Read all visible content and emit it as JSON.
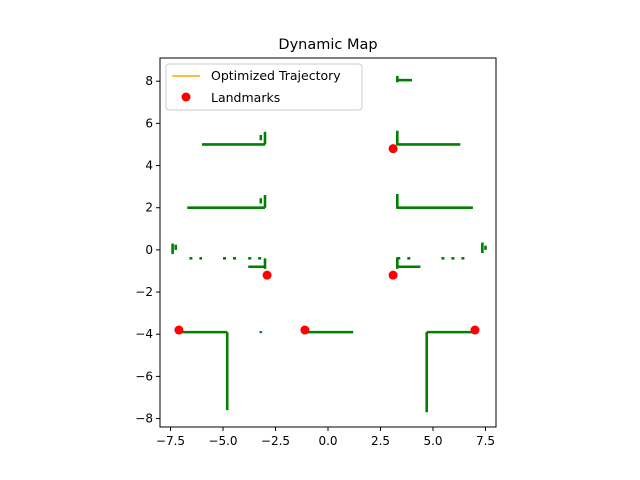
{
  "chart_data": {
    "type": "scatter",
    "title": "Dynamic Map",
    "xlabel": "",
    "ylabel": "",
    "xlim": [
      -8.0,
      8.0
    ],
    "ylim": [
      -8.4,
      9.1
    ],
    "xticks": [
      -7.5,
      -5.0,
      -2.5,
      0.0,
      2.5,
      5.0,
      7.5
    ],
    "xtick_labels": [
      "−7.5",
      "−5.0",
      "−2.5",
      "0.0",
      "2.5",
      "5.0",
      "7.5"
    ],
    "yticks": [
      -8,
      -6,
      -4,
      -2,
      0,
      2,
      4,
      6,
      8
    ],
    "ytick_labels": [
      "−8",
      "−6",
      "−4",
      "−2",
      "0",
      "2",
      "4",
      "6",
      "8"
    ],
    "grid": false,
    "legend": {
      "placement": "top-left",
      "entries": [
        {
          "label": "Optimized Trajectory",
          "marker": "line",
          "color": "#ffa500"
        },
        {
          "label": "Landmarks",
          "marker": "dot",
          "color": "#ff0000"
        }
      ]
    },
    "series": [
      {
        "name": "Landmarks",
        "kind": "points",
        "color": "#ff0000",
        "points": [
          [
            3.1,
            4.8
          ],
          [
            -2.9,
            -1.2
          ],
          [
            3.1,
            -1.2
          ],
          [
            -7.1,
            -3.8
          ],
          [
            -1.1,
            -3.8
          ],
          [
            7.0,
            -3.8
          ]
        ]
      },
      {
        "name": "",
        "kind": "scan-segments",
        "color": "#008000",
        "segments": [
          [
            [
              3.3,
              8.05
            ],
            [
              4.0,
              8.05
            ]
          ],
          [
            [
              3.3,
              7.95
            ],
            [
              3.3,
              8.25
            ]
          ],
          [
            [
              -6.0,
              5.0
            ],
            [
              -3.0,
              5.0
            ]
          ],
          [
            [
              -3.0,
              5.0
            ],
            [
              -3.0,
              5.6
            ]
          ],
          [
            [
              -3.2,
              5.2
            ],
            [
              -3.2,
              5.45
            ]
          ],
          [
            [
              3.3,
              5.0
            ],
            [
              6.3,
              5.0
            ]
          ],
          [
            [
              3.3,
              4.95
            ],
            [
              3.3,
              5.65
            ]
          ],
          [
            [
              -6.7,
              2.0
            ],
            [
              -3.0,
              2.0
            ]
          ],
          [
            [
              -3.0,
              2.0
            ],
            [
              -3.0,
              2.6
            ]
          ],
          [
            [
              -3.2,
              2.2
            ],
            [
              -3.2,
              2.45
            ]
          ],
          [
            [
              3.3,
              2.0
            ],
            [
              6.9,
              2.0
            ]
          ],
          [
            [
              3.3,
              1.95
            ],
            [
              3.3,
              2.65
            ]
          ],
          [
            [
              -3.8,
              -0.8
            ],
            [
              -3.0,
              -0.8
            ]
          ],
          [
            [
              -3.0,
              -0.4
            ],
            [
              -3.0,
              -0.9
            ]
          ],
          [
            [
              3.3,
              -0.8
            ],
            [
              4.4,
              -0.8
            ]
          ],
          [
            [
              3.3,
              -0.35
            ],
            [
              3.3,
              -0.9
            ]
          ],
          [
            [
              -7.4,
              -0.2
            ],
            [
              -7.4,
              0.3
            ]
          ],
          [
            [
              -7.25,
              0.0
            ],
            [
              -7.25,
              0.25
            ]
          ],
          [
            [
              7.35,
              -0.15
            ],
            [
              7.35,
              0.35
            ]
          ],
          [
            [
              7.5,
              0.0
            ],
            [
              7.5,
              0.2
            ]
          ],
          [
            [
              -7.0,
              -3.9
            ],
            [
              -4.8,
              -3.9
            ]
          ],
          [
            [
              -4.8,
              -3.9
            ],
            [
              -4.8,
              -7.6
            ]
          ],
          [
            [
              -3.2,
              -3.85
            ],
            [
              -3.2,
              -3.95
            ]
          ],
          [
            [
              -1.1,
              -3.9
            ],
            [
              1.2,
              -3.9
            ]
          ],
          [
            [
              4.7,
              -3.9
            ],
            [
              6.9,
              -3.9
            ]
          ],
          [
            [
              4.7,
              -3.9
            ],
            [
              4.7,
              -7.7
            ]
          ]
        ],
        "dashes": [
          [
            [
              -6.6,
              -0.4
            ],
            [
              -6.0,
              -0.4
            ]
          ],
          [
            [
              -5.0,
              -0.4
            ],
            [
              -4.3,
              -0.4
            ]
          ],
          [
            [
              -3.8,
              -0.4
            ],
            [
              -3.0,
              -0.4
            ]
          ],
          [
            [
              3.3,
              -0.4
            ],
            [
              4.2,
              -0.4
            ]
          ],
          [
            [
              5.4,
              -0.4
            ],
            [
              6.6,
              -0.4
            ]
          ]
        ]
      }
    ]
  }
}
